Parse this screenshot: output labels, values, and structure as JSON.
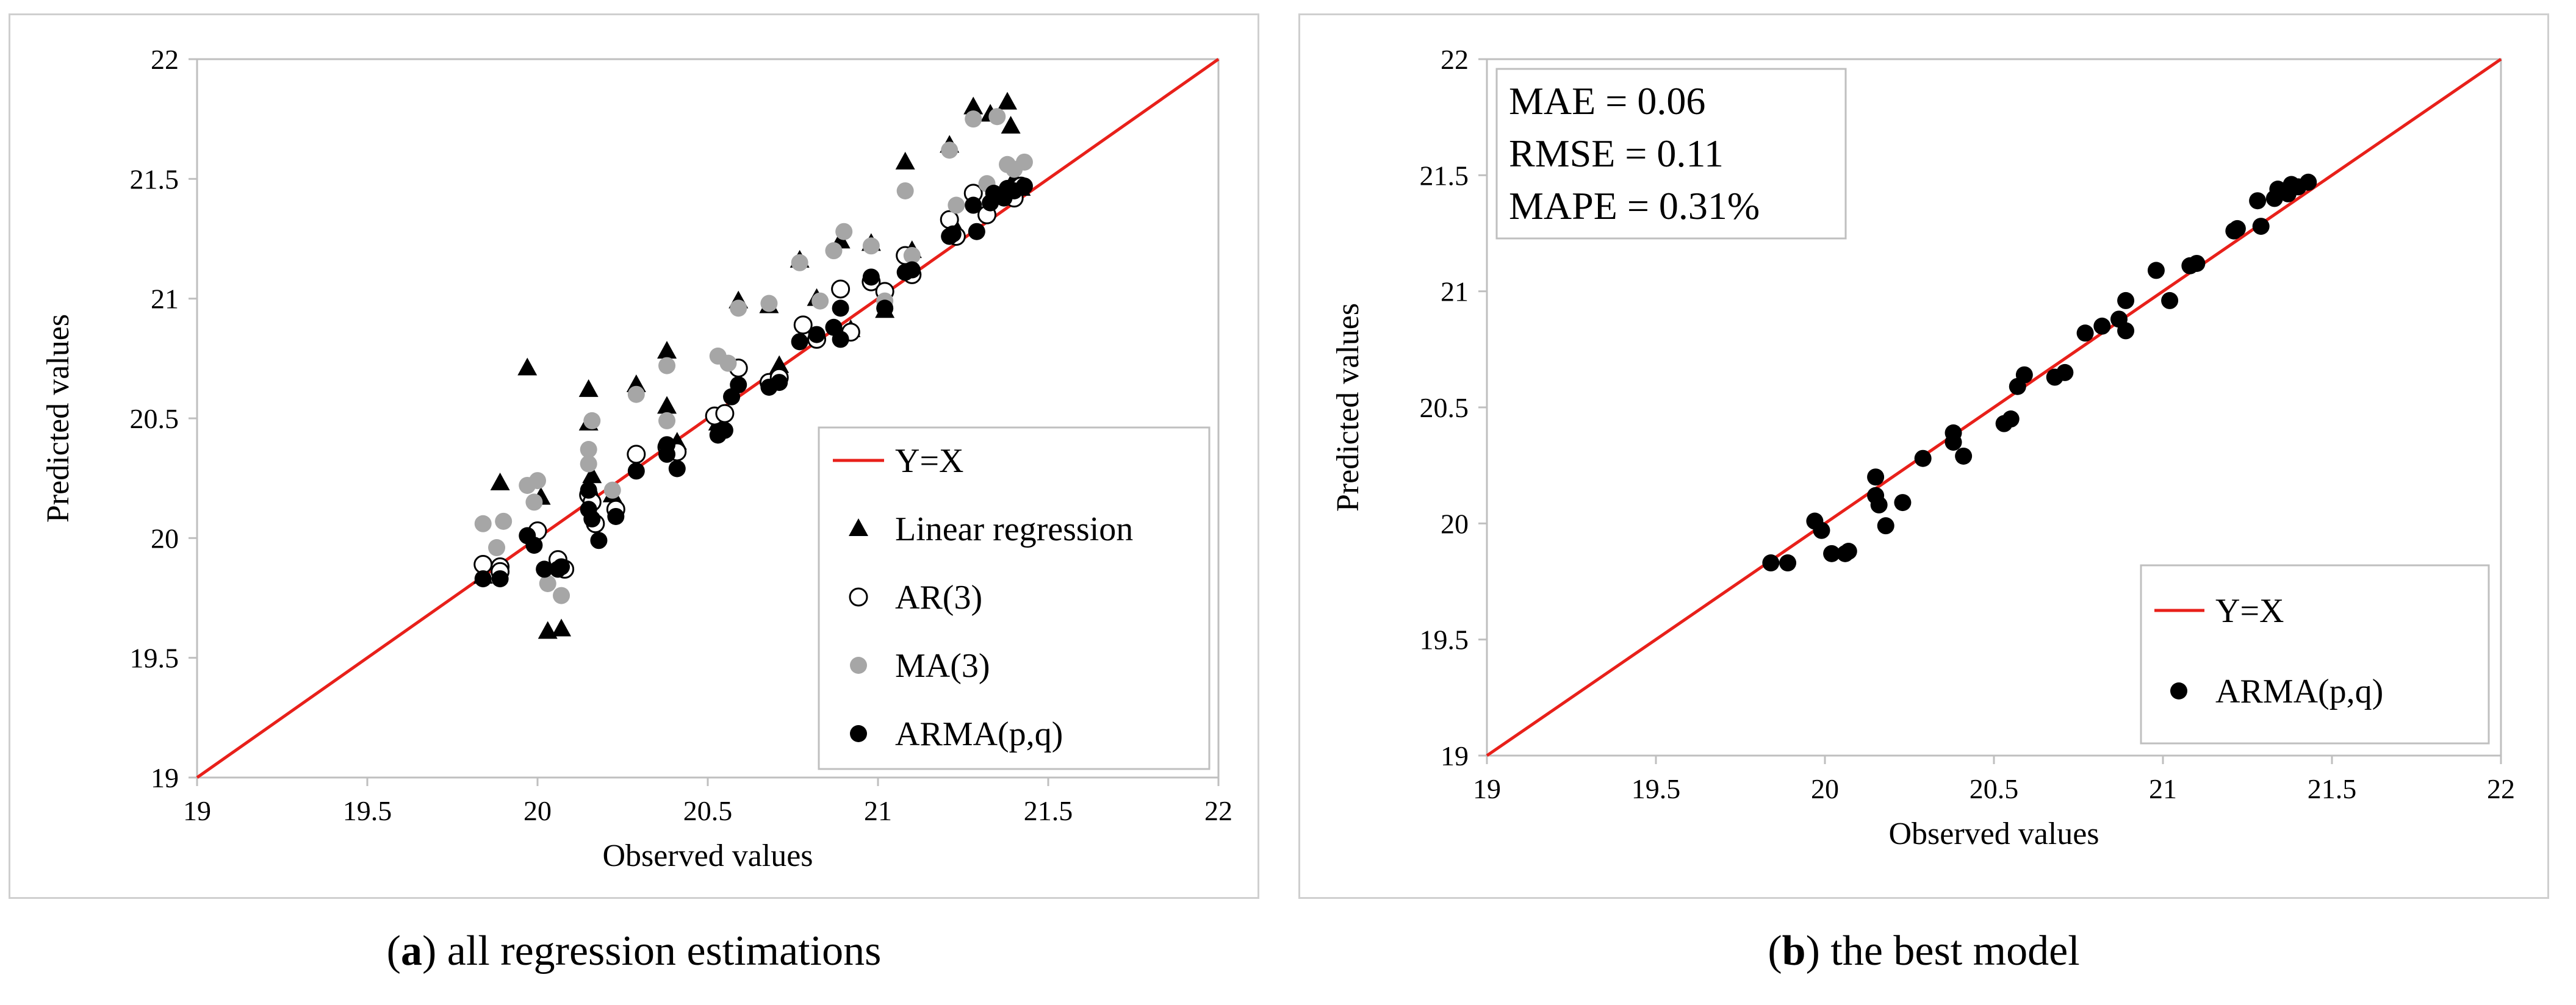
{
  "chart_data": [
    {
      "type": "scatter",
      "panel": "a",
      "xlabel": "Observed values",
      "ylabel": "Predicted values",
      "xlim": [
        19,
        22
      ],
      "ylim": [
        19,
        22
      ],
      "xticks": [
        19,
        19.5,
        20,
        20.5,
        21,
        21.5,
        22
      ],
      "yticks": [
        19,
        19.5,
        20,
        20.5,
        21,
        21.5,
        22
      ],
      "tick_labels": [
        "19",
        "19.5",
        "20",
        "20.5",
        "21",
        "21.5",
        "22"
      ],
      "grid": false,
      "legend_position": "bottom-right",
      "legend": {
        "yx": "Y=X",
        "linear": "Linear regression",
        "ar": "AR(3)",
        "ma": "MA(3)",
        "arma": "ARMA(p,q)"
      },
      "reference_line": {
        "name": "Y=X",
        "color": "#e8201a",
        "from": [
          19,
          19
        ],
        "to": [
          22,
          22
        ]
      },
      "series": [
        {
          "name": "Linear regression",
          "marker": "triangle",
          "color": "#000000",
          "points": [
            [
              19.84,
              19.84
            ],
            [
              19.89,
              20.23
            ],
            [
              19.97,
              20.71
            ],
            [
              20.01,
              20.17
            ],
            [
              20.03,
              19.61
            ],
            [
              20.07,
              19.62
            ],
            [
              20.15,
              20.62
            ],
            [
              20.15,
              20.48
            ],
            [
              20.16,
              20.26
            ],
            [
              20.22,
              20.18
            ],
            [
              20.29,
              20.64
            ],
            [
              20.38,
              20.78
            ],
            [
              20.38,
              20.55
            ],
            [
              20.41,
              20.4
            ],
            [
              20.53,
              20.48
            ],
            [
              20.59,
              20.99
            ],
            [
              20.68,
              20.97
            ],
            [
              20.71,
              20.72
            ],
            [
              20.77,
              21.16
            ],
            [
              20.82,
              21.0
            ],
            [
              20.89,
              21.24
            ],
            [
              20.92,
              20.87
            ],
            [
              20.98,
              21.23
            ],
            [
              21.02,
              20.95
            ],
            [
              21.08,
              21.57
            ],
            [
              21.1,
              21.2
            ],
            [
              21.21,
              21.64
            ],
            [
              21.23,
              21.29
            ],
            [
              21.28,
              21.8
            ],
            [
              21.33,
              21.77
            ],
            [
              21.38,
              21.82
            ],
            [
              21.39,
              21.72
            ],
            [
              21.4,
              21.5
            ],
            [
              21.42,
              21.46
            ]
          ]
        },
        {
          "name": "AR(3)",
          "marker": "open-circle",
          "color": "#000000",
          "points": [
            [
              19.84,
              19.89
            ],
            [
              19.89,
              19.88
            ],
            [
              19.89,
              19.86
            ],
            [
              20.0,
              20.03
            ],
            [
              20.06,
              19.91
            ],
            [
              20.08,
              19.87
            ],
            [
              20.15,
              20.18
            ],
            [
              20.16,
              20.15
            ],
            [
              20.17,
              20.06
            ],
            [
              20.23,
              20.12
            ],
            [
              20.29,
              20.35
            ],
            [
              20.38,
              20.38
            ],
            [
              20.41,
              20.36
            ],
            [
              20.52,
              20.51
            ],
            [
              20.55,
              20.52
            ],
            [
              20.59,
              20.71
            ],
            [
              20.68,
              20.65
            ],
            [
              20.71,
              20.67
            ],
            [
              20.78,
              20.89
            ],
            [
              20.82,
              20.83
            ],
            [
              20.89,
              21.04
            ],
            [
              20.92,
              20.86
            ],
            [
              20.98,
              21.07
            ],
            [
              21.02,
              21.03
            ],
            [
              21.08,
              21.18
            ],
            [
              21.1,
              21.1
            ],
            [
              21.21,
              21.33
            ],
            [
              21.23,
              21.26
            ],
            [
              21.28,
              21.44
            ],
            [
              21.32,
              21.35
            ],
            [
              21.38,
              21.43
            ],
            [
              21.4,
              21.42
            ],
            [
              21.42,
              21.47
            ]
          ]
        },
        {
          "name": "MA(3)",
          "marker": "filled-circle",
          "color": "#a6a6a6",
          "points": [
            [
              19.84,
              20.06
            ],
            [
              19.88,
              19.96
            ],
            [
              19.9,
              20.07
            ],
            [
              19.97,
              20.22
            ],
            [
              19.99,
              20.15
            ],
            [
              20.0,
              20.24
            ],
            [
              20.03,
              19.81
            ],
            [
              20.07,
              19.76
            ],
            [
              20.15,
              20.37
            ],
            [
              20.15,
              20.31
            ],
            [
              20.16,
              20.49
            ],
            [
              20.22,
              20.2
            ],
            [
              20.29,
              20.6
            ],
            [
              20.38,
              20.72
            ],
            [
              20.38,
              20.49
            ],
            [
              20.53,
              20.76
            ],
            [
              20.56,
              20.73
            ],
            [
              20.59,
              20.96
            ],
            [
              20.68,
              20.98
            ],
            [
              20.77,
              21.15
            ],
            [
              20.83,
              20.99
            ],
            [
              20.87,
              21.2
            ],
            [
              20.9,
              21.28
            ],
            [
              20.98,
              21.22
            ],
            [
              21.02,
              20.99
            ],
            [
              21.08,
              21.45
            ],
            [
              21.1,
              21.18
            ],
            [
              21.21,
              21.62
            ],
            [
              21.23,
              21.39
            ],
            [
              21.28,
              21.75
            ],
            [
              21.32,
              21.48
            ],
            [
              21.35,
              21.76
            ],
            [
              21.38,
              21.56
            ],
            [
              21.4,
              21.54
            ],
            [
              21.43,
              21.57
            ]
          ]
        },
        {
          "name": "ARMA(p,q)",
          "marker": "filled-circle",
          "color": "#000000",
          "points": [
            [
              19.84,
              19.83
            ],
            [
              19.89,
              19.83
            ],
            [
              19.97,
              20.01
            ],
            [
              19.99,
              19.97
            ],
            [
              20.02,
              19.87
            ],
            [
              20.06,
              19.87
            ],
            [
              20.07,
              19.88
            ],
            [
              20.15,
              20.2
            ],
            [
              20.15,
              20.12
            ],
            [
              20.16,
              20.08
            ],
            [
              20.18,
              19.99
            ],
            [
              20.23,
              20.09
            ],
            [
              20.29,
              20.28
            ],
            [
              20.38,
              20.39
            ],
            [
              20.38,
              20.35
            ],
            [
              20.41,
              20.29
            ],
            [
              20.53,
              20.43
            ],
            [
              20.55,
              20.45
            ],
            [
              20.57,
              20.59
            ],
            [
              20.59,
              20.64
            ],
            [
              20.68,
              20.63
            ],
            [
              20.71,
              20.65
            ],
            [
              20.77,
              20.82
            ],
            [
              20.82,
              20.85
            ],
            [
              20.87,
              20.88
            ],
            [
              20.89,
              20.96
            ],
            [
              20.89,
              20.83
            ],
            [
              20.98,
              21.09
            ],
            [
              21.02,
              20.96
            ],
            [
              21.08,
              21.11
            ],
            [
              21.1,
              21.12
            ],
            [
              21.21,
              21.26
            ],
            [
              21.22,
              21.27
            ],
            [
              21.28,
              21.39
            ],
            [
              21.29,
              21.28
            ],
            [
              21.33,
              21.4
            ],
            [
              21.34,
              21.44
            ],
            [
              21.37,
              21.42
            ],
            [
              21.38,
              21.46
            ],
            [
              21.4,
              21.45
            ],
            [
              21.43,
              21.47
            ]
          ]
        }
      ]
    },
    {
      "type": "scatter",
      "panel": "b",
      "xlabel": "Observed values",
      "ylabel": "Predicted values",
      "xlim": [
        19,
        22
      ],
      "ylim": [
        19,
        22
      ],
      "xticks": [
        19,
        19.5,
        20,
        20.5,
        21,
        21.5,
        22
      ],
      "yticks": [
        19,
        19.5,
        20,
        20.5,
        21,
        21.5,
        22
      ],
      "tick_labels": [
        "19",
        "19.5",
        "20",
        "20.5",
        "21",
        "21.5",
        "22"
      ],
      "grid": false,
      "legend_position": "bottom-right",
      "legend": {
        "yx": "Y=X",
        "arma": "ARMA(p,q)"
      },
      "stats": {
        "mae": "MAE   = 0.06",
        "rmse": "RMSE = 0.11",
        "mape": "MAPE = 0.31%"
      },
      "reference_line": {
        "name": "Y=X",
        "color": "#e8201a",
        "from": [
          19,
          19
        ],
        "to": [
          22,
          22
        ]
      },
      "series": [
        {
          "name": "ARMA(p,q)",
          "marker": "filled-circle",
          "color": "#000000",
          "points": [
            [
              19.84,
              19.83
            ],
            [
              19.89,
              19.83
            ],
            [
              19.97,
              20.01
            ],
            [
              19.99,
              19.97
            ],
            [
              20.02,
              19.87
            ],
            [
              20.06,
              19.87
            ],
            [
              20.07,
              19.88
            ],
            [
              20.15,
              20.2
            ],
            [
              20.15,
              20.12
            ],
            [
              20.16,
              20.08
            ],
            [
              20.18,
              19.99
            ],
            [
              20.23,
              20.09
            ],
            [
              20.29,
              20.28
            ],
            [
              20.38,
              20.39
            ],
            [
              20.38,
              20.35
            ],
            [
              20.41,
              20.29
            ],
            [
              20.53,
              20.43
            ],
            [
              20.55,
              20.45
            ],
            [
              20.57,
              20.59
            ],
            [
              20.59,
              20.64
            ],
            [
              20.68,
              20.63
            ],
            [
              20.71,
              20.65
            ],
            [
              20.77,
              20.82
            ],
            [
              20.82,
              20.85
            ],
            [
              20.87,
              20.88
            ],
            [
              20.89,
              20.96
            ],
            [
              20.89,
              20.83
            ],
            [
              20.98,
              21.09
            ],
            [
              21.02,
              20.96
            ],
            [
              21.08,
              21.11
            ],
            [
              21.1,
              21.12
            ],
            [
              21.21,
              21.26
            ],
            [
              21.22,
              21.27
            ],
            [
              21.28,
              21.39
            ],
            [
              21.29,
              21.28
            ],
            [
              21.33,
              21.4
            ],
            [
              21.34,
              21.44
            ],
            [
              21.37,
              21.42
            ],
            [
              21.38,
              21.46
            ],
            [
              21.4,
              21.45
            ],
            [
              21.43,
              21.47
            ]
          ]
        }
      ]
    }
  ],
  "captions": [
    {
      "letter": "a",
      "text": " all regression estimations"
    },
    {
      "letter": "b",
      "text": " the best model"
    }
  ]
}
